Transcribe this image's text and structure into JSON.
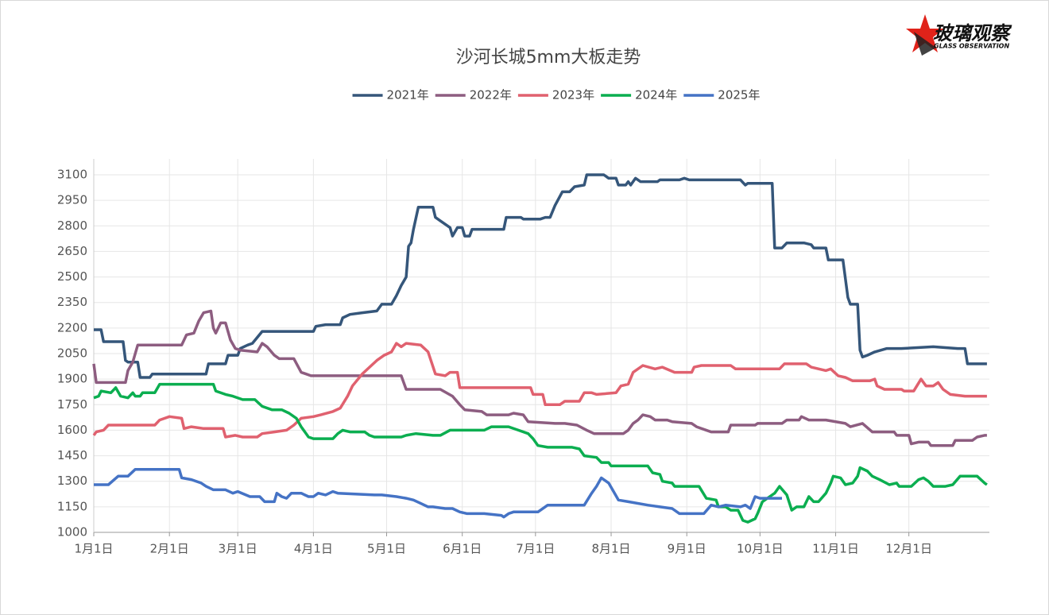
{
  "logo": {
    "name": "玻璃观察",
    "subtitle": "GLASS OBSERVATION"
  },
  "chart_data": {
    "type": "line",
    "title": "沙河长城5mm大板走势",
    "grid": true,
    "legend": "top",
    "xlim": [
      1,
      368
    ],
    "ylim": [
      1000,
      3100
    ],
    "xticks": [
      {
        "value": 1,
        "label": "1月1日"
      },
      {
        "value": 32,
        "label": "2月1日"
      },
      {
        "value": 60,
        "label": "3月1日"
      },
      {
        "value": 91,
        "label": "4月1日"
      },
      {
        "value": 121,
        "label": "5月1日"
      },
      {
        "value": 152,
        "label": "6月1日"
      },
      {
        "value": 182,
        "label": "7月1日"
      },
      {
        "value": 213,
        "label": "8月1日"
      },
      {
        "value": 244,
        "label": "9月1日"
      },
      {
        "value": 274,
        "label": "10月1日"
      },
      {
        "value": 305,
        "label": "11月1日"
      },
      {
        "value": 335,
        "label": "12月1日"
      }
    ],
    "yticks": [
      1000,
      1150,
      1300,
      1450,
      1600,
      1750,
      1900,
      2050,
      2200,
      2350,
      2500,
      2650,
      2800,
      2950,
      3100
    ],
    "series": [
      {
        "name": "2021年",
        "color": "#35567a",
        "x": [
          1,
          4,
          5,
          13,
          14,
          15,
          19,
          20,
          24,
          25,
          47,
          48,
          55,
          56,
          60,
          61,
          64,
          66,
          70,
          91,
          92,
          96,
          102,
          103,
          106,
          111,
          117,
          119,
          123,
          125,
          127,
          129,
          130,
          131,
          132,
          134,
          140,
          141,
          143,
          147,
          148,
          150,
          152,
          153,
          155,
          156,
          169,
          170,
          176,
          177,
          184,
          186,
          188,
          190,
          193,
          196,
          198,
          202,
          203,
          210,
          212,
          215,
          216,
          219,
          220,
          221,
          223,
          225,
          232,
          233,
          241,
          243,
          245,
          266,
          268,
          269,
          279,
          280,
          283,
          285,
          292,
          295,
          296,
          301,
          302,
          308,
          310,
          311,
          314,
          315,
          316,
          318,
          321,
          326,
          332,
          345,
          355,
          358,
          359,
          367
        ],
        "values": [
          2190,
          2190,
          2120,
          2120,
          2010,
          2000,
          2000,
          1910,
          1910,
          1930,
          1930,
          1990,
          1990,
          2040,
          2040,
          2080,
          2100,
          2110,
          2180,
          2180,
          2210,
          2220,
          2220,
          2260,
          2280,
          2290,
          2300,
          2340,
          2340,
          2390,
          2450,
          2500,
          2680,
          2700,
          2780,
          2910,
          2910,
          2850,
          2830,
          2790,
          2740,
          2790,
          2790,
          2740,
          2740,
          2780,
          2780,
          2850,
          2850,
          2840,
          2840,
          2850,
          2850,
          2920,
          3000,
          3000,
          3030,
          3040,
          3100,
          3100,
          3080,
          3080,
          3040,
          3040,
          3060,
          3040,
          3080,
          3060,
          3060,
          3070,
          3070,
          3080,
          3070,
          3070,
          3040,
          3050,
          3050,
          2670,
          2670,
          2700,
          2700,
          2690,
          2670,
          2670,
          2600,
          2600,
          2380,
          2340,
          2340,
          2070,
          2030,
          2040,
          2060,
          2080,
          2080,
          2090,
          2080,
          2080,
          1990,
          1990
        ]
      },
      {
        "name": "2022年",
        "color": "#8d5d80",
        "x": [
          1,
          2,
          14,
          15,
          17,
          19,
          37,
          39,
          42,
          44,
          46,
          49,
          50,
          51,
          53,
          55,
          57,
          59,
          61,
          68,
          70,
          72,
          75,
          77,
          83,
          86,
          88,
          90,
          127,
          129,
          143,
          148,
          151,
          153,
          160,
          162,
          171,
          173,
          177,
          179,
          190,
          194,
          199,
          203,
          206,
          218,
          220,
          222,
          224,
          226,
          229,
          231,
          236,
          238,
          246,
          248,
          254,
          261,
          262,
          272,
          273,
          283,
          285,
          290,
          291,
          294,
          301,
          309,
          311,
          316,
          320,
          329,
          330,
          335,
          336,
          339,
          343,
          344,
          353,
          354,
          361,
          363,
          366,
          367
        ],
        "values": [
          1990,
          1880,
          1880,
          1950,
          2000,
          2100,
          2100,
          2160,
          2170,
          2240,
          2290,
          2300,
          2200,
          2170,
          2230,
          2230,
          2130,
          2080,
          2070,
          2060,
          2110,
          2090,
          2040,
          2020,
          2020,
          1940,
          1930,
          1920,
          1920,
          1840,
          1840,
          1800,
          1750,
          1720,
          1710,
          1690,
          1690,
          1700,
          1690,
          1650,
          1640,
          1640,
          1630,
          1600,
          1580,
          1580,
          1600,
          1640,
          1660,
          1690,
          1680,
          1660,
          1660,
          1650,
          1640,
          1620,
          1590,
          1590,
          1630,
          1630,
          1640,
          1640,
          1660,
          1660,
          1680,
          1660,
          1660,
          1640,
          1620,
          1640,
          1590,
          1590,
          1570,
          1570,
          1520,
          1530,
          1530,
          1510,
          1510,
          1540,
          1540,
          1560,
          1570,
          1570
        ]
      },
      {
        "name": "2023年",
        "color": "#e0616f",
        "x": [
          1,
          2,
          5,
          7,
          26,
          28,
          32,
          37,
          38,
          41,
          46,
          54,
          55,
          59,
          62,
          68,
          70,
          75,
          80,
          83,
          86,
          91,
          94,
          99,
          102,
          105,
          107,
          111,
          114,
          117,
          120,
          123,
          125,
          127,
          129,
          135,
          138,
          141,
          145,
          147,
          150,
          151,
          180,
          181,
          185,
          186,
          192,
          194,
          200,
          202,
          205,
          207,
          215,
          217,
          220,
          222,
          226,
          231,
          234,
          239,
          246,
          247,
          250,
          262,
          264,
          282,
          284,
          293,
          295,
          301,
          303,
          306,
          309,
          312,
          319,
          321,
          322,
          325,
          332,
          333,
          337,
          340,
          342,
          345,
          347,
          349,
          352,
          358,
          367
        ],
        "values": [
          1570,
          1590,
          1600,
          1630,
          1630,
          1660,
          1680,
          1670,
          1610,
          1620,
          1610,
          1610,
          1560,
          1570,
          1560,
          1560,
          1580,
          1590,
          1600,
          1630,
          1670,
          1680,
          1690,
          1710,
          1730,
          1800,
          1860,
          1930,
          1970,
          2010,
          2040,
          2060,
          2110,
          2090,
          2110,
          2100,
          2060,
          1930,
          1920,
          1940,
          1940,
          1850,
          1850,
          1810,
          1810,
          1750,
          1750,
          1770,
          1770,
          1820,
          1820,
          1810,
          1820,
          1860,
          1870,
          1940,
          1980,
          1960,
          1970,
          1940,
          1940,
          1970,
          1980,
          1980,
          1960,
          1960,
          1990,
          1990,
          1970,
          1950,
          1960,
          1920,
          1910,
          1890,
          1890,
          1900,
          1860,
          1840,
          1840,
          1830,
          1830,
          1900,
          1860,
          1860,
          1880,
          1840,
          1810,
          1800,
          1800
        ]
      },
      {
        "name": "2024年",
        "color": "#0bae50",
        "x": [
          1,
          3,
          4,
          8,
          10,
          12,
          15,
          17,
          18,
          20,
          21,
          26,
          28,
          50,
          51,
          55,
          58,
          62,
          67,
          70,
          74,
          78,
          81,
          84,
          86,
          89,
          91,
          99,
          101,
          103,
          106,
          112,
          114,
          116,
          127,
          129,
          133,
          140,
          143,
          147,
          158,
          161,
          164,
          171,
          175,
          179,
          181,
          183,
          187,
          197,
          200,
          202,
          207,
          209,
          212,
          213,
          228,
          230,
          233,
          234,
          238,
          239,
          249,
          252,
          256,
          257,
          260,
          262,
          265,
          267,
          269,
          272,
          273,
          275,
          278,
          280,
          282,
          285,
          287,
          289,
          292,
          294,
          296,
          298,
          301,
          303,
          304,
          307,
          309,
          312,
          314,
          315,
          318,
          320,
          323,
          327,
          330,
          331,
          336,
          339,
          341,
          343,
          345,
          350,
          353,
          356,
          363,
          366,
          367
        ],
        "values": [
          1790,
          1800,
          1830,
          1820,
          1850,
          1800,
          1790,
          1820,
          1800,
          1800,
          1820,
          1820,
          1870,
          1870,
          1830,
          1810,
          1800,
          1780,
          1780,
          1740,
          1720,
          1720,
          1700,
          1670,
          1620,
          1560,
          1550,
          1550,
          1580,
          1600,
          1590,
          1590,
          1570,
          1560,
          1560,
          1570,
          1580,
          1570,
          1570,
          1600,
          1600,
          1600,
          1620,
          1620,
          1600,
          1580,
          1550,
          1510,
          1500,
          1500,
          1490,
          1450,
          1440,
          1410,
          1410,
          1390,
          1390,
          1350,
          1340,
          1300,
          1290,
          1270,
          1270,
          1200,
          1190,
          1150,
          1150,
          1130,
          1130,
          1070,
          1060,
          1080,
          1110,
          1180,
          1210,
          1230,
          1270,
          1220,
          1130,
          1150,
          1150,
          1210,
          1180,
          1180,
          1230,
          1290,
          1330,
          1320,
          1280,
          1290,
          1330,
          1380,
          1360,
          1330,
          1310,
          1280,
          1290,
          1270,
          1270,
          1310,
          1320,
          1300,
          1270,
          1270,
          1280,
          1330,
          1330,
          1290,
          1280
        ]
      },
      {
        "name": "2025年",
        "color": "#4573c5",
        "x": [
          1,
          7,
          11,
          15,
          18,
          36,
          37,
          41,
          45,
          47,
          50,
          55,
          58,
          60,
          65,
          69,
          71,
          75,
          76,
          78,
          80,
          82,
          86,
          89,
          91,
          93,
          96,
          99,
          101,
          116,
          119,
          125,
          129,
          132,
          135,
          138,
          140,
          145,
          148,
          151,
          154,
          161,
          168,
          169,
          171,
          173,
          177,
          183,
          187,
          197,
          202,
          205,
          207,
          209,
          212,
          214,
          216,
          220,
          228,
          233,
          238,
          241,
          246,
          251,
          254,
          257,
          260,
          266,
          268,
          270,
          272,
          274,
          283
        ],
        "values": [
          1280,
          1280,
          1330,
          1330,
          1370,
          1370,
          1320,
          1310,
          1290,
          1270,
          1250,
          1250,
          1230,
          1240,
          1210,
          1210,
          1180,
          1180,
          1230,
          1210,
          1200,
          1230,
          1230,
          1210,
          1210,
          1230,
          1220,
          1240,
          1230,
          1220,
          1220,
          1210,
          1200,
          1190,
          1170,
          1150,
          1150,
          1140,
          1140,
          1120,
          1110,
          1110,
          1100,
          1090,
          1110,
          1120,
          1120,
          1120,
          1160,
          1160,
          1160,
          1230,
          1270,
          1320,
          1290,
          1240,
          1190,
          1180,
          1160,
          1150,
          1140,
          1110,
          1110,
          1110,
          1160,
          1150,
          1160,
          1150,
          1160,
          1140,
          1210,
          1200,
          1200
        ]
      }
    ]
  }
}
